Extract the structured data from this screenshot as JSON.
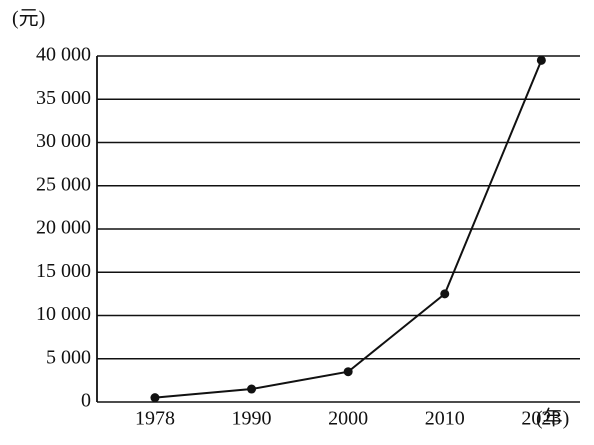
{
  "chart_data": {
    "type": "line",
    "y_label": "(元)",
    "x_label": "(年)",
    "categories": [
      "1978",
      "1990",
      "2000",
      "2010",
      "2023"
    ],
    "values": [
      500,
      1500,
      3500,
      12500,
      39500
    ],
    "color": "#111111",
    "ylim": [
      0,
      40000
    ],
    "yticks": [
      0,
      {
        "value": 5000,
        "label": "5 000"
      },
      {
        "value": 10000,
        "label": "10 000"
      },
      {
        "value": 15000,
        "label": "15 000"
      },
      {
        "value": 20000,
        "label": "20 000"
      },
      {
        "value": 25000,
        "label": "25 000"
      },
      {
        "value": 30000,
        "label": "30 000"
      },
      {
        "value": 35000,
        "label": "35 000"
      },
      {
        "value": 40000,
        "label": "40 000"
      }
    ],
    "grid": true
  }
}
